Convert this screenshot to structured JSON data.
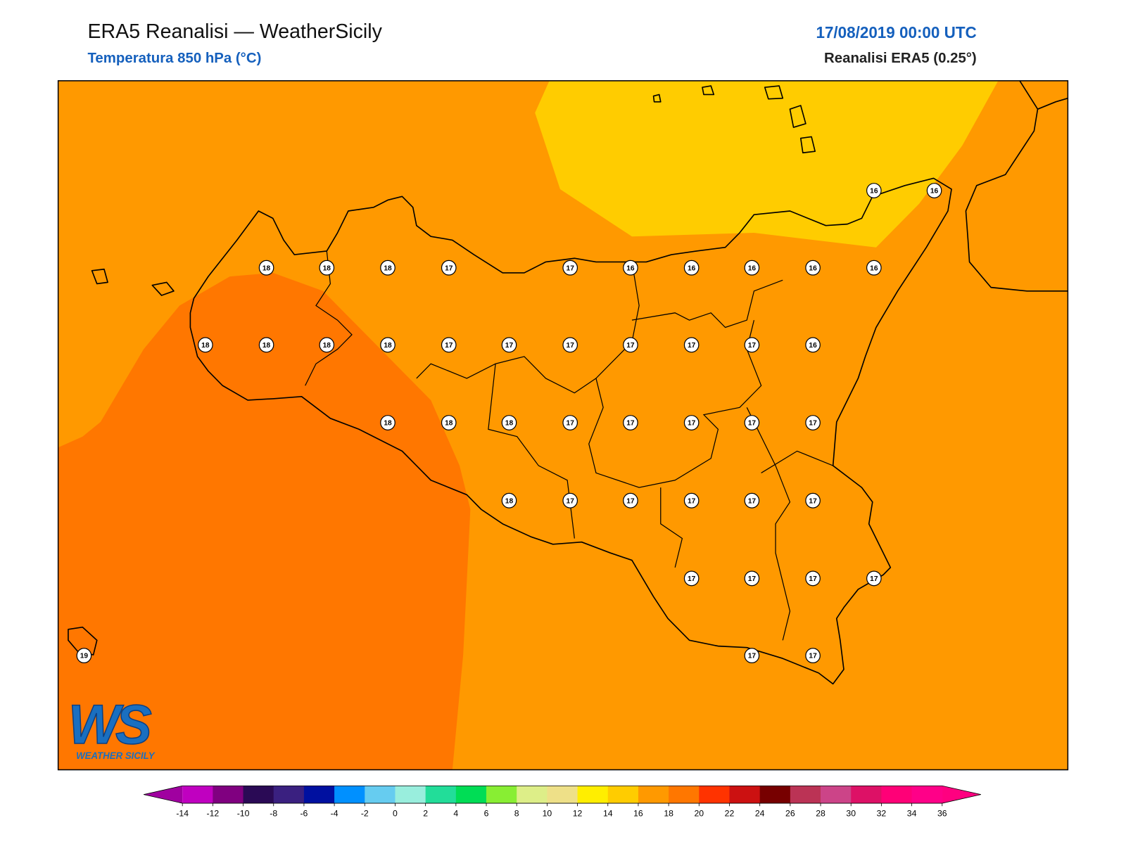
{
  "header": {
    "title": "ERA5 Reanalisi — WeatherSicily",
    "subtitle": "Temperatura 850 hPa (°C)",
    "datetime": "17/08/2019 00:00 UTC",
    "source": "Reanalisi ERA5 (0.25°)"
  },
  "stations": [
    16,
    16,
    18,
    18,
    18,
    17,
    17,
    16,
    16,
    16,
    16,
    16,
    18,
    18,
    18,
    18,
    17,
    17,
    17,
    17,
    17,
    17,
    16,
    18,
    18,
    18,
    17,
    17,
    17,
    17,
    17,
    18,
    17,
    17,
    17,
    17,
    17,
    17,
    17,
    17,
    17,
    19,
    17,
    17
  ],
  "colorbar": {
    "ticks": [
      -14,
      -12,
      -10,
      -8,
      -6,
      -4,
      -2,
      0,
      2,
      4,
      6,
      8,
      10,
      12,
      14,
      16,
      18,
      20,
      22,
      24,
      26,
      28,
      30,
      32,
      34,
      36
    ],
    "colors": [
      "#c000c0",
      "#800080",
      "#2a0a55",
      "#3a2080",
      "#0010a0",
      "#0090ff",
      "#66ccf0",
      "#99eedd",
      "#22dd99",
      "#00dd55",
      "#88ee33",
      "#ddee88",
      "#eee088",
      "#ffee00",
      "#ffcc00",
      "#ff9900",
      "#ff7700",
      "#ff3300",
      "#cc1111",
      "#770000",
      "#bb3355",
      "#cc4488",
      "#dd1166",
      "#ff0077",
      "#ff0088"
    ],
    "under_color": "#a000a0",
    "over_color": "#ff0080"
  },
  "logo": {
    "mark": "WS",
    "name": "WEATHER SICILY"
  }
}
